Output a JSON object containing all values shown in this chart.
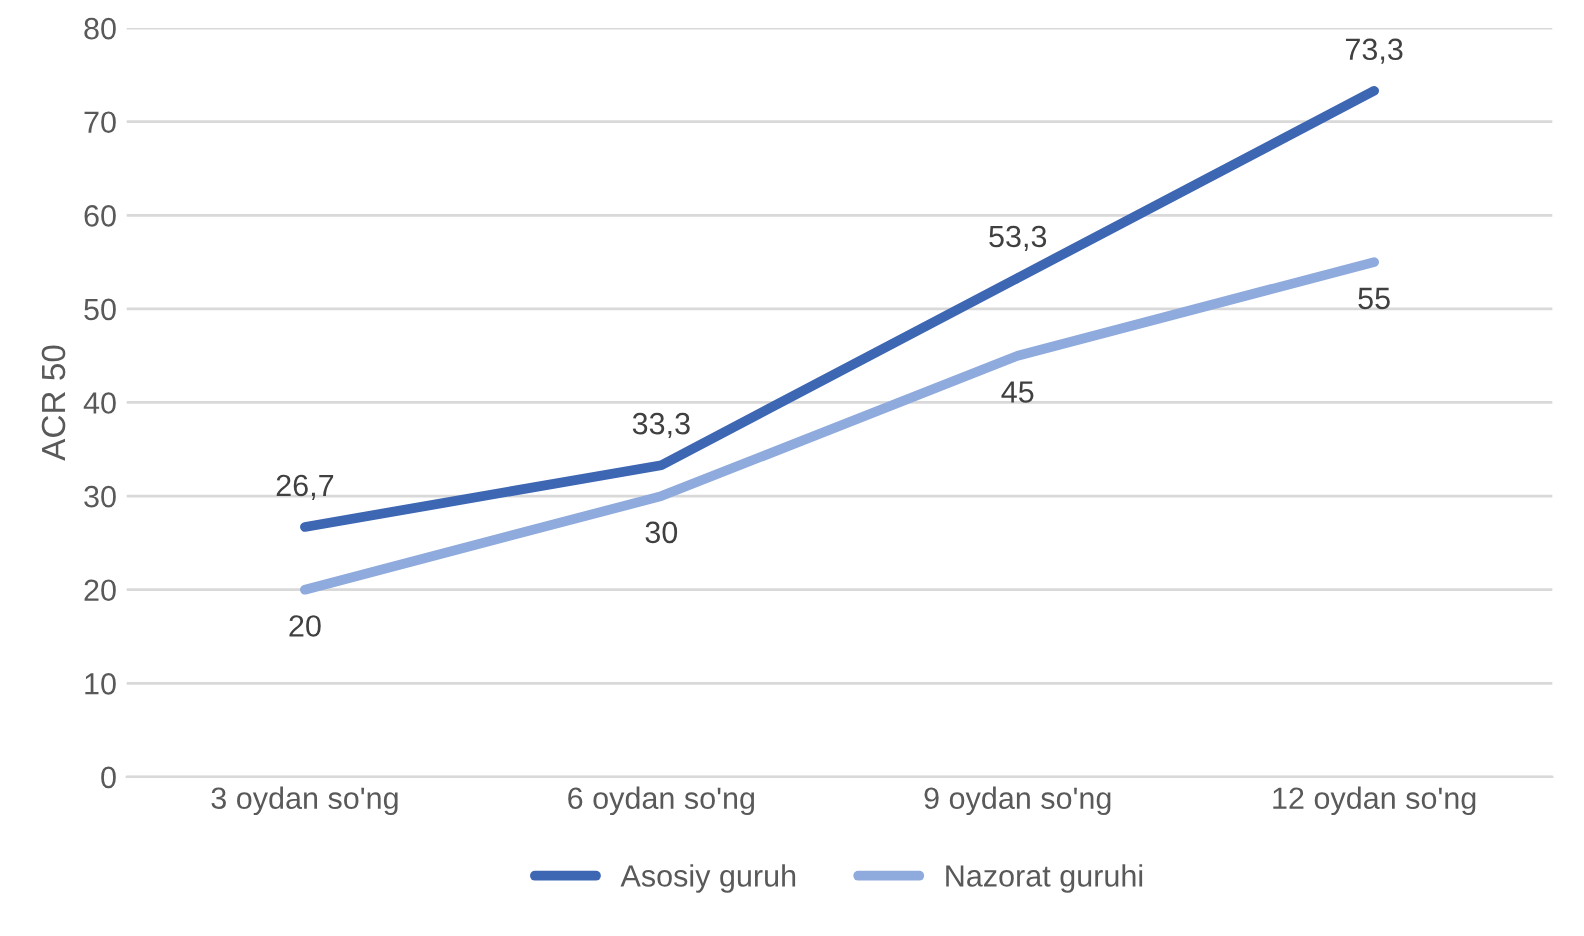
{
  "chart_data": {
    "type": "line",
    "ylabel": "ACR 50",
    "categories": [
      "3 oydan so'ng",
      "6 oydan so'ng",
      "9 oydan so'ng",
      "12 oydan so'ng"
    ],
    "series": [
      {
        "name": "Asosiy guruh",
        "color": "#3d66b3",
        "values": [
          26.7,
          33.3,
          53.3,
          73.3
        ],
        "value_labels": [
          "26,7",
          "33,3",
          "53,3",
          "73,3"
        ]
      },
      {
        "name": "Nazorat guruhi",
        "color": "#8faadc",
        "values": [
          20,
          30,
          45,
          55
        ],
        "value_labels": [
          "20",
          "30",
          "45",
          "55"
        ]
      }
    ],
    "ylim": [
      0,
      80
    ],
    "yticks": [
      0,
      10,
      20,
      30,
      40,
      50,
      60,
      70,
      80
    ],
    "grid": "y",
    "legend": "bottom",
    "marker": "none",
    "line_style": "solid"
  }
}
